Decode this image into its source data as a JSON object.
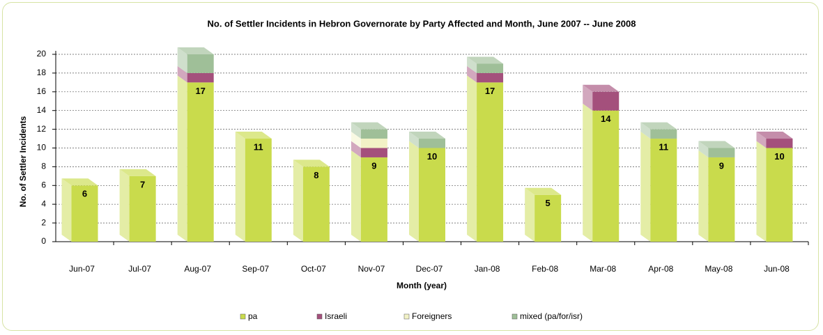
{
  "chart_data": {
    "type": "stacked_bar",
    "title": "No. of Settler Incidents in Hebron Governorate by Party Affected and Month, June 2007 -- June 2008",
    "x_label": "Month (year)",
    "y_label": "No. of Settler Incidents",
    "categories": [
      "Jun-07",
      "Jul-07",
      "Aug-07",
      "Sep-07",
      "Oct-07",
      "Nov-07",
      "Dec-07",
      "Jan-08",
      "Feb-08",
      "Mar-08",
      "Apr-08",
      "May-08",
      "Jun-08"
    ],
    "series": [
      {
        "name": "pa",
        "color": "#c9db4c",
        "values": [
          6,
          7,
          17,
          11,
          8,
          9,
          10,
          17,
          5,
          14,
          11,
          9,
          10
        ]
      },
      {
        "name": "Israeli",
        "color": "#a4507c",
        "values": [
          0,
          0,
          1,
          0,
          0,
          1,
          0,
          1,
          0,
          2,
          0,
          0,
          1
        ]
      },
      {
        "name": "Foreigners",
        "color": "#f2f2c6",
        "values": [
          0,
          0,
          0,
          0,
          0,
          1,
          0,
          0,
          0,
          0,
          0,
          0,
          0
        ]
      },
      {
        "name": "mixed (pa/for/isr)",
        "color": "#9fbf98",
        "values": [
          0,
          0,
          2,
          0,
          0,
          1,
          1,
          1,
          0,
          0,
          1,
          1,
          0
        ]
      }
    ],
    "ylim": [
      0,
      20
    ],
    "yticks": [
      0,
      2,
      4,
      6,
      8,
      10,
      12,
      14,
      16,
      18,
      20
    ],
    "grid": true,
    "legend": "bottom"
  }
}
